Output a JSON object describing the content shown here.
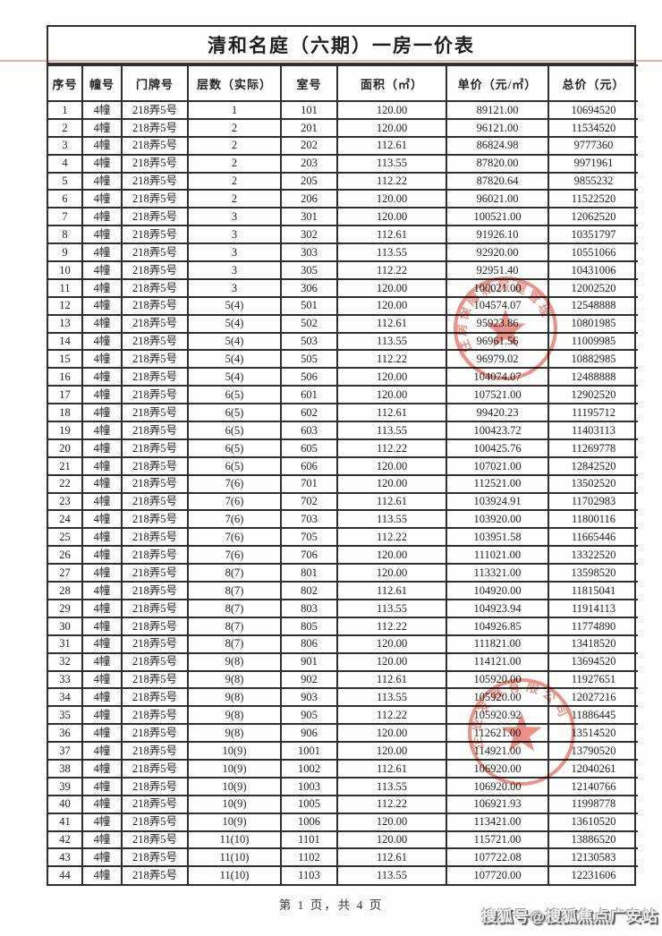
{
  "document": {
    "title": "清和名庭（六期）一房一价表",
    "page_footer": "第 1 页，共 4 页",
    "watermark": "搜狐号@搜狐焦点广安站"
  },
  "table": {
    "headers": [
      "序号",
      "幢号",
      "门牌号",
      "层数（实际）",
      "室号",
      "面积（㎡）",
      "单价（元/㎡）",
      "总价（元）"
    ],
    "rows": [
      [
        "1",
        "4幢",
        "218弄5号",
        "1",
        "101",
        "120.00",
        "89121.00",
        "10694520"
      ],
      [
        "2",
        "4幢",
        "218弄5号",
        "2",
        "201",
        "120.00",
        "96121.00",
        "11534520"
      ],
      [
        "3",
        "4幢",
        "218弄5号",
        "2",
        "202",
        "112.61",
        "86824.98",
        "9777360"
      ],
      [
        "4",
        "4幢",
        "218弄5号",
        "2",
        "203",
        "113.55",
        "87820.00",
        "9971961"
      ],
      [
        "5",
        "4幢",
        "218弄5号",
        "2",
        "205",
        "112.22",
        "87820.64",
        "9855232"
      ],
      [
        "6",
        "4幢",
        "218弄5号",
        "2",
        "206",
        "120.00",
        "96021.00",
        "11522520"
      ],
      [
        "7",
        "4幢",
        "218弄5号",
        "3",
        "301",
        "120.00",
        "100521.00",
        "12062520"
      ],
      [
        "8",
        "4幢",
        "218弄5号",
        "3",
        "302",
        "112.61",
        "91926.10",
        "10351797"
      ],
      [
        "9",
        "4幢",
        "218弄5号",
        "3",
        "303",
        "113.55",
        "92920.00",
        "10551066"
      ],
      [
        "10",
        "4幢",
        "218弄5号",
        "3",
        "305",
        "112.22",
        "92951.40",
        "10431006"
      ],
      [
        "11",
        "4幢",
        "218弄5号",
        "3",
        "306",
        "120.00",
        "100021.00",
        "12002520"
      ],
      [
        "12",
        "4幢",
        "218弄5号",
        "5(4)",
        "501",
        "120.00",
        "104574.07",
        "12548888"
      ],
      [
        "13",
        "4幢",
        "218弄5号",
        "5(4)",
        "502",
        "112.61",
        "95923.86",
        "10801985"
      ],
      [
        "14",
        "4幢",
        "218弄5号",
        "5(4)",
        "503",
        "113.55",
        "96961.56",
        "11009985"
      ],
      [
        "15",
        "4幢",
        "218弄5号",
        "5(4)",
        "505",
        "112.22",
        "96979.02",
        "10882985"
      ],
      [
        "16",
        "4幢",
        "218弄5号",
        "5(4)",
        "506",
        "120.00",
        "104074.07",
        "12488888"
      ],
      [
        "17",
        "4幢",
        "218弄5号",
        "6(5)",
        "601",
        "120.00",
        "107521.00",
        "12902520"
      ],
      [
        "18",
        "4幢",
        "218弄5号",
        "6(5)",
        "602",
        "112.61",
        "99420.23",
        "11195712"
      ],
      [
        "19",
        "4幢",
        "218弄5号",
        "6(5)",
        "603",
        "113.55",
        "100423.72",
        "11403113"
      ],
      [
        "20",
        "4幢",
        "218弄5号",
        "6(5)",
        "605",
        "112.22",
        "100425.76",
        "11269778"
      ],
      [
        "21",
        "4幢",
        "218弄5号",
        "6(5)",
        "606",
        "120.00",
        "107021.00",
        "12842520"
      ],
      [
        "22",
        "4幢",
        "218弄5号",
        "7(6)",
        "701",
        "120.00",
        "112521.00",
        "13502520"
      ],
      [
        "23",
        "4幢",
        "218弄5号",
        "7(6)",
        "702",
        "112.61",
        "103924.91",
        "11702983"
      ],
      [
        "24",
        "4幢",
        "218弄5号",
        "7(6)",
        "703",
        "113.55",
        "103920.00",
        "11800116"
      ],
      [
        "25",
        "4幢",
        "218弄5号",
        "7(6)",
        "705",
        "112.22",
        "103951.58",
        "11665446"
      ],
      [
        "26",
        "4幢",
        "218弄5号",
        "7(6)",
        "706",
        "120.00",
        "111021.00",
        "13322520"
      ],
      [
        "27",
        "4幢",
        "218弄5号",
        "8(7)",
        "801",
        "120.00",
        "113321.00",
        "13598520"
      ],
      [
        "28",
        "4幢",
        "218弄5号",
        "8(7)",
        "802",
        "112.61",
        "104920.00",
        "11815041"
      ],
      [
        "29",
        "4幢",
        "218弄5号",
        "8(7)",
        "803",
        "113.55",
        "104923.94",
        "11914113"
      ],
      [
        "30",
        "4幢",
        "218弄5号",
        "8(7)",
        "805",
        "112.22",
        "104926.85",
        "11774890"
      ],
      [
        "31",
        "4幢",
        "218弄5号",
        "8(7)",
        "806",
        "120.00",
        "111821.00",
        "13418520"
      ],
      [
        "32",
        "4幢",
        "218弄5号",
        "9(8)",
        "901",
        "120.00",
        "114121.00",
        "13694520"
      ],
      [
        "33",
        "4幢",
        "218弄5号",
        "9(8)",
        "902",
        "112.61",
        "105920.00",
        "11927651"
      ],
      [
        "34",
        "4幢",
        "218弄5号",
        "9(8)",
        "903",
        "113.55",
        "105920.00",
        "12027216"
      ],
      [
        "35",
        "4幢",
        "218弄5号",
        "9(8)",
        "905",
        "112.22",
        "105920.92",
        "11886445"
      ],
      [
        "36",
        "4幢",
        "218弄5号",
        "9(8)",
        "906",
        "120.00",
        "112621.00",
        "13514520"
      ],
      [
        "37",
        "4幢",
        "218弄5号",
        "10(9)",
        "1001",
        "120.00",
        "114921.00",
        "13790520"
      ],
      [
        "38",
        "4幢",
        "218弄5号",
        "10(9)",
        "1002",
        "112.61",
        "106920.00",
        "12040261"
      ],
      [
        "39",
        "4幢",
        "218弄5号",
        "10(9)",
        "1003",
        "113.55",
        "106920.00",
        "12140766"
      ],
      [
        "40",
        "4幢",
        "218弄5号",
        "10(9)",
        "1005",
        "112.22",
        "106921.93",
        "11998778"
      ],
      [
        "41",
        "4幢",
        "218弄5号",
        "10(9)",
        "1006",
        "120.00",
        "113421.00",
        "13610520"
      ],
      [
        "42",
        "4幢",
        "218弄5号",
        "11(10)",
        "1101",
        "120.00",
        "115721.00",
        "13886520"
      ],
      [
        "43",
        "4幢",
        "218弄5号",
        "11(10)",
        "1102",
        "112.61",
        "107722.08",
        "12130583"
      ],
      [
        "44",
        "4幢",
        "218弄5号",
        "11(10)",
        "1103",
        "113.55",
        "107720.00",
        "12231606"
      ]
    ]
  },
  "stamps": [
    {
      "name": "housing-authority-seal",
      "arc_text": "住房保障和房屋管理",
      "shape": "circle-star"
    },
    {
      "name": "company-seal",
      "arc_text": "企业发展有限公司",
      "shape": "circle-star"
    }
  ],
  "colors": {
    "seal_red": "#d8372b",
    "divider_line": "#eea28e",
    "table_border": "#2f2f2f"
  }
}
